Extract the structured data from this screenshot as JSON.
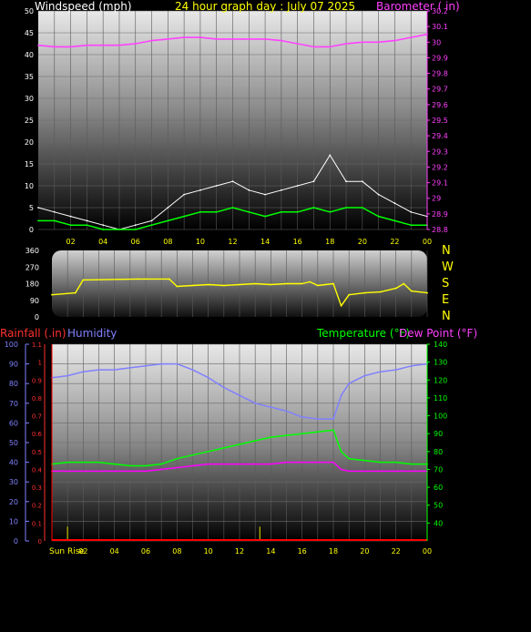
{
  "panel_top": {
    "title_left": "Windspeed (mph)",
    "title_center": "24 hour graph day : July 07 2025",
    "title_right": "Barometer ( in)"
  },
  "panel_dir": {
    "compass": [
      "N",
      "W",
      "S",
      "E",
      "N"
    ]
  },
  "panel_bottom": {
    "rainfall_label": "Rainfall (.in)",
    "humidity_label": "Humidity",
    "temperature_label": "Temperature (°F)",
    "dewpoint_label": "Dew Point (°F)",
    "sunrise_label": "Sun Rise"
  },
  "colors": {
    "wind_gust": "#ffffff",
    "wind_avg": "#00ff00",
    "wind_mean": "#008800",
    "barometer": "#ff40ff",
    "direction": "#ffff00",
    "rainfall": "#ff0000",
    "humidity": "#8080ff",
    "temperature": "#00ff00",
    "dewpoint": "#ff00ff",
    "rain_bar": "#c0c000"
  },
  "chart_data": [
    {
      "type": "line",
      "x_ticks": [
        "02",
        "04",
        "06",
        "08",
        "10",
        "12",
        "14",
        "16",
        "18",
        "20",
        "22",
        "00"
      ],
      "x_range_hours": [
        0,
        24
      ],
      "y_left": {
        "label": "Windspeed (mph)",
        "ticks": [
          "0",
          "5",
          "10",
          "15",
          "20",
          "25",
          "30",
          "35",
          "40",
          "45",
          "50"
        ],
        "range": [
          0,
          50
        ]
      },
      "y_right": {
        "label": "Barometer ( in)",
        "ticks": [
          "28.8",
          "28.9",
          "29",
          "29.1",
          "29.2",
          "29.3",
          "29.4",
          "29.5",
          "29.6",
          "29.7",
          "29.8",
          "29.9",
          "30",
          "30.1",
          "30.2"
        ],
        "range": [
          28.8,
          30.2
        ]
      },
      "series": [
        {
          "name": "Barometer",
          "axis": "right",
          "x": [
            0,
            1,
            2,
            3,
            4,
            5,
            6,
            7,
            8,
            9,
            10,
            11,
            12,
            13,
            14,
            15,
            16,
            17,
            18,
            19,
            20,
            21,
            22,
            23,
            24
          ],
          "values": [
            29.98,
            29.97,
            29.97,
            29.98,
            29.98,
            29.98,
            29.99,
            30.01,
            30.02,
            30.03,
            30.03,
            30.02,
            30.02,
            30.02,
            30.02,
            30.01,
            29.99,
            29.97,
            29.97,
            29.99,
            30.0,
            30.0,
            30.01,
            30.03,
            30.05
          ]
        },
        {
          "name": "Wind Gust",
          "axis": "left",
          "x": [
            0,
            1,
            2,
            3,
            4,
            5,
            6,
            7,
            8,
            9,
            10,
            11,
            12,
            13,
            14,
            15,
            16,
            17,
            18,
            19,
            20,
            21,
            22,
            23,
            24
          ],
          "values": [
            5,
            4,
            3,
            2,
            1,
            0,
            1,
            2,
            5,
            8,
            9,
            10,
            11,
            9,
            8,
            9,
            10,
            11,
            17,
            11,
            11,
            8,
            6,
            4,
            3
          ]
        },
        {
          "name": "Wind Avg",
          "axis": "left",
          "x": [
            0,
            1,
            2,
            3,
            4,
            5,
            6,
            7,
            8,
            9,
            10,
            11,
            12,
            13,
            14,
            15,
            16,
            17,
            18,
            19,
            20,
            21,
            22,
            23,
            24
          ],
          "values": [
            2,
            2,
            1,
            1,
            0,
            0,
            0,
            1,
            2,
            3,
            4,
            4,
            5,
            4,
            3,
            4,
            4,
            5,
            4,
            5,
            5,
            3,
            2,
            1,
            1
          ]
        }
      ]
    },
    {
      "type": "line",
      "x_ticks": [
        "02",
        "04",
        "06",
        "08",
        "10",
        "12",
        "14",
        "16",
        "18",
        "20",
        "22",
        "00"
      ],
      "x_range_hours": [
        0,
        24
      ],
      "y_left": {
        "label": "Wind direction (deg)",
        "ticks": [
          "0",
          "90",
          "180",
          "270",
          "360"
        ],
        "range": [
          0,
          360
        ]
      },
      "series": [
        {
          "name": "Wind Direction",
          "x": [
            0,
            1.5,
            2,
            5.5,
            6,
            7.5,
            8,
            9,
            10,
            11,
            12,
            13,
            14,
            15,
            16,
            16.5,
            17,
            17.5,
            18,
            18.5,
            19,
            20,
            21,
            22,
            22.5,
            23,
            24
          ],
          "values": [
            120,
            130,
            200,
            205,
            205,
            205,
            165,
            170,
            175,
            170,
            175,
            180,
            175,
            180,
            180,
            190,
            170,
            175,
            180,
            60,
            120,
            130,
            135,
            155,
            180,
            140,
            130
          ]
        }
      ]
    },
    {
      "type": "line",
      "x_ticks": [
        "02",
        "04",
        "06",
        "08",
        "10",
        "12",
        "14",
        "16",
        "18",
        "20",
        "22",
        "00"
      ],
      "x_range_hours": [
        0,
        24
      ],
      "y_left_humidity": {
        "label": "Humidity",
        "ticks": [
          "0",
          "10",
          "20",
          "30",
          "40",
          "50",
          "60",
          "70",
          "80",
          "90",
          "100"
        ],
        "range": [
          0,
          100
        ]
      },
      "y_left_rain": {
        "label": "Rainfall (.in)",
        "ticks": [
          "0",
          "0.1",
          "0.2",
          "0.3",
          "0.4",
          "0.5",
          "0.6",
          "0.7",
          "0.8",
          "0.9",
          "1",
          "1.1"
        ],
        "range": [
          0,
          1.1
        ]
      },
      "y_right": {
        "label": "Temperature (°F) / Dew Point (°F)",
        "ticks": [
          "40",
          "50",
          "60",
          "70",
          "80",
          "90",
          "100",
          "110",
          "120",
          "130",
          "140"
        ],
        "range": [
          30,
          140
        ]
      },
      "series": [
        {
          "name": "Humidity",
          "axis": "humidity",
          "x": [
            0,
            1,
            2,
            3,
            4,
            5,
            6,
            7,
            8,
            9,
            10,
            11,
            12,
            13,
            14,
            15,
            16,
            17,
            18,
            18.5,
            19,
            20,
            21,
            22,
            23,
            24
          ],
          "values": [
            83,
            84,
            86,
            87,
            87,
            88,
            89,
            90,
            90,
            87,
            83,
            78,
            74,
            70,
            68,
            66,
            63,
            62,
            62,
            74,
            80,
            84,
            86,
            87,
            89,
            90
          ]
        },
        {
          "name": "Temperature",
          "axis": "right",
          "x": [
            0,
            1,
            2,
            3,
            4,
            5,
            6,
            7,
            8,
            9,
            10,
            11,
            12,
            13,
            14,
            15,
            16,
            17,
            18,
            18.5,
            19,
            20,
            21,
            22,
            23,
            24
          ],
          "values": [
            73,
            74,
            74,
            74,
            73,
            72,
            72,
            73,
            76,
            78,
            80,
            82,
            84,
            86,
            88,
            89,
            90,
            91,
            92,
            80,
            76,
            75,
            74,
            74,
            73,
            73
          ]
        },
        {
          "name": "Dew Point",
          "axis": "right",
          "x": [
            0,
            1,
            2,
            3,
            4,
            5,
            6,
            7,
            8,
            9,
            10,
            11,
            12,
            13,
            14,
            15,
            16,
            17,
            18,
            18.5,
            19,
            20,
            21,
            22,
            23,
            24
          ],
          "values": [
            69,
            69,
            69,
            69,
            69,
            69,
            69,
            70,
            71,
            72,
            73,
            73,
            73,
            73,
            73,
            74,
            74,
            74,
            74,
            70,
            69,
            69,
            69,
            69,
            69,
            69
          ]
        },
        {
          "name": "Rainfall",
          "axis": "rain",
          "type": "bar",
          "x": [
            1,
            13.3
          ],
          "values": [
            0.08,
            0.08
          ]
        }
      ]
    }
  ]
}
